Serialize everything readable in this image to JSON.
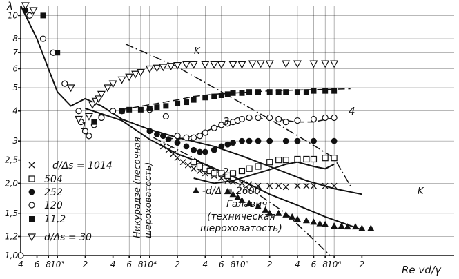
{
  "chart_data": {
    "type": "scatter",
    "title": "",
    "xlabel": "Re  vd/γ",
    "ylabel": "λ",
    "x_scale": "log",
    "y_scale": "log",
    "xlim": [
      4,
      200000
    ],
    "ylim": [
      1.0,
      11
    ],
    "grid": true,
    "x_ticks": [
      {
        "v": 4,
        "t": "4"
      },
      {
        "v": 6,
        "t": "6"
      },
      {
        "v": 8,
        "t": "8"
      },
      {
        "v": 10,
        "t": "10³"
      },
      {
        "v": 20,
        "t": "2"
      },
      {
        "v": 40,
        "t": "4"
      },
      {
        "v": 60,
        "t": "6"
      },
      {
        "v": 80,
        "t": "8"
      },
      {
        "v": 100,
        "t": "10⁴"
      },
      {
        "v": 200,
        "t": "2"
      },
      {
        "v": 400,
        "t": "4"
      },
      {
        "v": 600,
        "t": "6"
      },
      {
        "v": 800,
        "t": "8"
      },
      {
        "v": 1000,
        "t": "10⁵"
      },
      {
        "v": 2000,
        "t": "2"
      },
      {
        "v": 4000,
        "t": "4"
      },
      {
        "v": 6000,
        "t": "6"
      },
      {
        "v": 8000,
        "t": "8"
      },
      {
        "v": 10000,
        "t": "10⁶"
      },
      {
        "v": 20000,
        "t": "2"
      }
    ],
    "y_ticks": [
      {
        "v": 1.0,
        "t": "1,0"
      },
      {
        "v": 1.2,
        "t": "1,2"
      },
      {
        "v": 1.5,
        "t": "1,5"
      },
      {
        "v": 2.0,
        "t": "2,0"
      },
      {
        "v": 2.5,
        "t": "2,5"
      },
      {
        "v": 3,
        "t": "3"
      },
      {
        "v": 4,
        "t": "4"
      },
      {
        "v": 5,
        "t": "5"
      },
      {
        "v": 6,
        "t": "6"
      },
      {
        "v": 7,
        "t": "7"
      },
      {
        "v": 8,
        "t": "8"
      },
      {
        "v": 10,
        "t": "10"
      }
    ],
    "legend": {
      "header1": "d/Δs = 1014",
      "rows": [
        {
          "marker": "x",
          "label": ""
        },
        {
          "marker": "square-open",
          "label": "504"
        },
        {
          "marker": "circle-filled",
          "label": "252"
        },
        {
          "marker": "circle-open",
          "label": "120"
        },
        {
          "marker": "square-filled",
          "label": "11,2"
        }
      ],
      "footer_marker": "triangle-down-open",
      "footer": "d/Δs = 30",
      "galavich_marker": "triangle-filled",
      "galavich_line1": "-d/Δ = 2600",
      "galavich_name": "Галавич",
      "galavich_note1": "(техническая",
      "galavich_note2": "шероховатость)",
      "nikuradse_line1": "Никурадзе (песочная",
      "nikuradse_line2": "шероховатость)"
    },
    "annotations": {
      "c1": "1",
      "c2": "2",
      "c3": "3",
      "c4": "4",
      "k1": "K",
      "k2": "K"
    },
    "curves": {
      "laminar": [
        [
          4,
          11
        ],
        [
          6,
          8
        ],
        [
          8,
          6
        ],
        [
          10,
          4.8
        ],
        [
          14,
          4.2
        ],
        [
          20,
          4.5
        ],
        [
          30,
          4.2
        ],
        [
          50,
          3.7
        ],
        [
          100,
          3.35
        ],
        [
          200,
          3.1
        ],
        [
          500,
          2.85
        ],
        [
          1000,
          2.6
        ],
        [
          2000,
          2.35
        ],
        [
          5000,
          2.05
        ],
        [
          10000,
          1.9
        ],
        [
          20000,
          1.8
        ]
      ],
      "smooth": [
        [
          20,
          4.1
        ],
        [
          50,
          3.65
        ],
        [
          100,
          3.05
        ],
        [
          200,
          2.65
        ],
        [
          400,
          2.4
        ],
        [
          1000,
          2.05
        ],
        [
          2000,
          1.8
        ],
        [
          4000,
          1.62
        ],
        [
          8000,
          1.45
        ],
        [
          20000,
          1.28
        ]
      ],
      "rough_curve2": [
        [
          300,
          2.1
        ],
        [
          500,
          2.0
        ],
        [
          800,
          2.05
        ],
        [
          1200,
          2.15
        ],
        [
          2000,
          2.28
        ],
        [
          3000,
          2.4
        ],
        [
          4000,
          2.45
        ],
        [
          6000,
          2.35
        ],
        [
          8000,
          2.3
        ],
        [
          10000,
          2.4
        ]
      ],
      "rough_curve3": [
        [
          150,
          3.1
        ],
        [
          200,
          3.05
        ],
        [
          300,
          3.15
        ],
        [
          500,
          3.4
        ],
        [
          800,
          3.6
        ],
        [
          1200,
          3.7
        ],
        [
          2000,
          3.72
        ],
        [
          4000,
          3.6
        ],
        [
          6000,
          3.6
        ],
        [
          10000,
          3.75
        ]
      ],
      "rough_curve4": [
        [
          50,
          4.05
        ],
        [
          100,
          4.25
        ],
        [
          200,
          4.45
        ],
        [
          300,
          4.6
        ],
        [
          500,
          4.7
        ],
        [
          800,
          4.75
        ],
        [
          2000,
          4.85
        ],
        [
          5000,
          4.9
        ],
        [
          15000,
          4.95
        ]
      ]
    },
    "k_lines": [
      {
        "name": "K-upper",
        "points": [
          [
            55,
            7.6
          ],
          [
            200,
            6.1
          ],
          [
            500,
            5.0
          ],
          [
            1000,
            4.3
          ],
          [
            2000,
            3.7
          ],
          [
            5000,
            3.0
          ],
          [
            10000,
            2.55
          ],
          [
            15000,
            1.95
          ]
        ]
      },
      {
        "name": "K-lower",
        "points": [
          [
            110,
            3.1
          ],
          [
            300,
            2.55
          ],
          [
            700,
            2.1
          ],
          [
            1500,
            1.8
          ],
          [
            3000,
            1.5
          ],
          [
            7000,
            1.1
          ],
          [
            9000,
            1.0
          ]
        ]
      }
    ],
    "series": [
      {
        "marker": "x",
        "values": [
          [
            140,
            2.85
          ],
          [
            160,
            2.75
          ],
          [
            180,
            2.65
          ],
          [
            200,
            2.55
          ],
          [
            230,
            2.45
          ],
          [
            260,
            2.38
          ],
          [
            300,
            2.3
          ],
          [
            350,
            2.25
          ],
          [
            400,
            2.2
          ],
          [
            500,
            2.15
          ],
          [
            600,
            2.1
          ],
          [
            700,
            2.05
          ],
          [
            800,
            2.03
          ],
          [
            1000,
            2.0
          ],
          [
            1200,
            1.98
          ],
          [
            1500,
            1.95
          ],
          [
            2000,
            1.95
          ],
          [
            2500,
            1.95
          ],
          [
            3000,
            1.93
          ],
          [
            4000,
            1.95
          ],
          [
            5000,
            1.95
          ],
          [
            6000,
            1.95
          ],
          [
            8000,
            1.95
          ],
          [
            10000,
            1.95
          ]
        ]
      },
      {
        "marker": "square-open",
        "values": [
          [
            300,
            2.45
          ],
          [
            350,
            2.35
          ],
          [
            400,
            2.3
          ],
          [
            450,
            2.25
          ],
          [
            500,
            2.2
          ],
          [
            600,
            2.2
          ],
          [
            700,
            2.15
          ],
          [
            800,
            2.2
          ],
          [
            1000,
            2.25
          ],
          [
            1200,
            2.3
          ],
          [
            1500,
            2.35
          ],
          [
            2000,
            2.45
          ],
          [
            2500,
            2.5
          ],
          [
            3000,
            2.5
          ],
          [
            4000,
            2.52
          ],
          [
            5000,
            2.52
          ],
          [
            6000,
            2.52
          ],
          [
            8000,
            2.55
          ],
          [
            10000,
            2.55
          ]
        ]
      },
      {
        "marker": "circle-filled",
        "values": [
          [
            4.5,
            10.5
          ],
          [
            30,
            3.8
          ],
          [
            100,
            3.3
          ],
          [
            120,
            3.2
          ],
          [
            140,
            3.15
          ],
          [
            160,
            3.05
          ],
          [
            200,
            2.95
          ],
          [
            250,
            2.85
          ],
          [
            300,
            2.75
          ],
          [
            350,
            2.7
          ],
          [
            400,
            2.7
          ],
          [
            500,
            2.75
          ],
          [
            600,
            2.85
          ],
          [
            700,
            2.9
          ],
          [
            800,
            2.95
          ],
          [
            1000,
            3.0
          ],
          [
            1200,
            3.0
          ],
          [
            1500,
            3.0
          ],
          [
            2000,
            3.0
          ],
          [
            3000,
            3.0
          ],
          [
            4000,
            3.0
          ],
          [
            6000,
            3.0
          ],
          [
            10000,
            3.0
          ]
        ]
      },
      {
        "marker": "circle-open",
        "values": [
          [
            4,
            1.0
          ],
          [
            5,
            10.0
          ],
          [
            7,
            8.0
          ],
          [
            9,
            7.0
          ],
          [
            12,
            5.2
          ],
          [
            17,
            4.0
          ],
          [
            18,
            3.6
          ],
          [
            20,
            3.3
          ],
          [
            22,
            3.15
          ],
          [
            25,
            3.5
          ],
          [
            30,
            3.75
          ],
          [
            40,
            4.0
          ],
          [
            50,
            4.0
          ],
          [
            100,
            4.05
          ],
          [
            150,
            3.8
          ],
          [
            200,
            3.15
          ],
          [
            250,
            3.1
          ],
          [
            300,
            3.1
          ],
          [
            350,
            3.15
          ],
          [
            400,
            3.25
          ],
          [
            500,
            3.4
          ],
          [
            600,
            3.5
          ],
          [
            700,
            3.55
          ],
          [
            800,
            3.6
          ],
          [
            900,
            3.65
          ],
          [
            1000,
            3.7
          ],
          [
            1200,
            3.75
          ],
          [
            1500,
            3.75
          ],
          [
            2000,
            3.75
          ],
          [
            2500,
            3.7
          ],
          [
            3000,
            3.6
          ],
          [
            4000,
            3.65
          ],
          [
            6000,
            3.7
          ],
          [
            8000,
            3.75
          ],
          [
            10000,
            3.75
          ]
        ]
      },
      {
        "marker": "square-filled",
        "values": [
          [
            7,
            10.0
          ],
          [
            10,
            7.0
          ],
          [
            25,
            3.6
          ],
          [
            50,
            4.0
          ],
          [
            60,
            4.05
          ],
          [
            80,
            4.05
          ],
          [
            100,
            4.1
          ],
          [
            120,
            4.15
          ],
          [
            150,
            4.2
          ],
          [
            200,
            4.3
          ],
          [
            250,
            4.35
          ],
          [
            300,
            4.45
          ],
          [
            400,
            4.55
          ],
          [
            500,
            4.6
          ],
          [
            600,
            4.65
          ],
          [
            700,
            4.7
          ],
          [
            800,
            4.75
          ],
          [
            1000,
            4.75
          ],
          [
            1200,
            4.8
          ],
          [
            1500,
            4.8
          ],
          [
            2000,
            4.8
          ],
          [
            2500,
            4.8
          ],
          [
            3000,
            4.8
          ],
          [
            4000,
            4.8
          ],
          [
            5000,
            4.8
          ],
          [
            6000,
            4.85
          ],
          [
            8000,
            4.85
          ],
          [
            10000,
            4.85
          ]
        ]
      },
      {
        "marker": "triangle-down-open",
        "values": [
          [
            4.5,
            11.0
          ],
          [
            5.5,
            10.5
          ],
          [
            14,
            5.0
          ],
          [
            17,
            3.7
          ],
          [
            22,
            3.8
          ],
          [
            24,
            4.25
          ],
          [
            26,
            4.4
          ],
          [
            28,
            4.5
          ],
          [
            30,
            4.7
          ],
          [
            35,
            5.0
          ],
          [
            40,
            5.2
          ],
          [
            50,
            5.4
          ],
          [
            60,
            5.55
          ],
          [
            70,
            5.7
          ],
          [
            80,
            5.8
          ],
          [
            100,
            6.0
          ],
          [
            120,
            6.05
          ],
          [
            140,
            6.1
          ],
          [
            170,
            6.15
          ],
          [
            200,
            6.2
          ],
          [
            250,
            6.25
          ],
          [
            300,
            6.25
          ],
          [
            400,
            6.25
          ],
          [
            500,
            6.25
          ],
          [
            600,
            6.25
          ],
          [
            800,
            6.25
          ],
          [
            1000,
            6.25
          ],
          [
            1300,
            6.3
          ],
          [
            1600,
            6.3
          ],
          [
            2000,
            6.3
          ],
          [
            3000,
            6.3
          ],
          [
            4000,
            6.3
          ],
          [
            6000,
            6.3
          ],
          [
            8000,
            6.3
          ],
          [
            10000,
            6.3
          ]
        ]
      },
      {
        "marker": "triangle-filled",
        "values": [
          [
            700,
            1.85
          ],
          [
            800,
            1.8
          ],
          [
            900,
            1.75
          ],
          [
            1000,
            1.7
          ],
          [
            1200,
            1.65
          ],
          [
            1500,
            1.6
          ],
          [
            1800,
            1.55
          ],
          [
            2000,
            1.5
          ],
          [
            2500,
            1.5
          ],
          [
            3000,
            1.48
          ],
          [
            3500,
            1.45
          ],
          [
            4000,
            1.42
          ],
          [
            5000,
            1.4
          ],
          [
            6000,
            1.38
          ],
          [
            7000,
            1.36
          ],
          [
            8000,
            1.35
          ],
          [
            10000,
            1.33
          ],
          [
            12000,
            1.33
          ],
          [
            14000,
            1.32
          ],
          [
            17000,
            1.32
          ],
          [
            20000,
            1.3
          ],
          [
            25000,
            1.3
          ]
        ]
      }
    ]
  }
}
